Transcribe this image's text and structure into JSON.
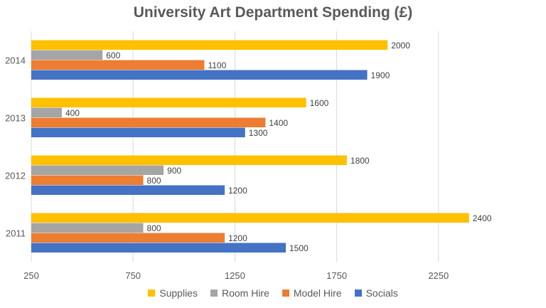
{
  "chart_data": {
    "type": "bar",
    "orientation": "horizontal",
    "title": "University Art Department Spending (£)",
    "categories": [
      "2011",
      "2012",
      "2013",
      "2014"
    ],
    "series": [
      {
        "name": "Supplies",
        "color": "#FFC000",
        "values": [
          2400,
          1800,
          1600,
          2000
        ]
      },
      {
        "name": "Room Hire",
        "color": "#A5A5A5",
        "values": [
          800,
          900,
          400,
          600
        ]
      },
      {
        "name": "Model Hire",
        "color": "#ED7D31",
        "values": [
          1200,
          800,
          1400,
          1100
        ]
      },
      {
        "name": "Socials",
        "color": "#4472C4",
        "values": [
          1500,
          1200,
          1300,
          1900
        ]
      }
    ],
    "xlim": [
      250,
      2750
    ],
    "xticks": [
      250,
      750,
      1250,
      1750,
      2250
    ],
    "xlabel": "",
    "ylabel": "",
    "grid": true,
    "legend_position": "bottom"
  }
}
